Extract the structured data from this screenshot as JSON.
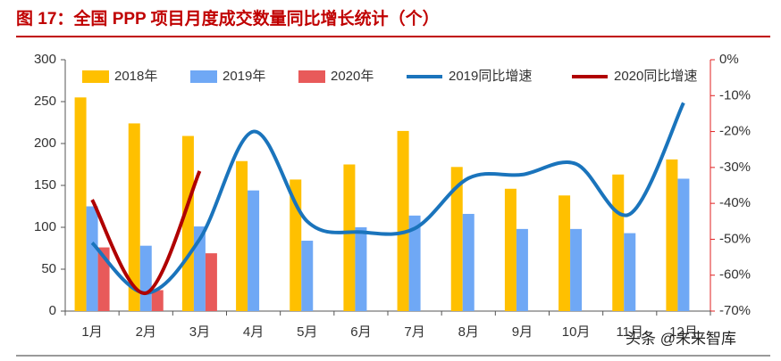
{
  "chart_data": {
    "type": "bar",
    "title": "图 17：全国 PPP 项目月度成交数量同比增长统计（个）",
    "categories": [
      "1月",
      "2月",
      "3月",
      "4月",
      "5月",
      "6月",
      "7月",
      "8月",
      "9月",
      "10月",
      "11月",
      "12月"
    ],
    "series": [
      {
        "name": "2018年",
        "type": "bar",
        "color": "#FFC000",
        "values": [
          255,
          224,
          209,
          179,
          157,
          175,
          215,
          172,
          146,
          138,
          163,
          181
        ]
      },
      {
        "name": "2019年",
        "type": "bar",
        "color": "#6FA8F5",
        "values": [
          125,
          78,
          101,
          144,
          84,
          100,
          114,
          116,
          98,
          98,
          93,
          158
        ]
      },
      {
        "name": "2020年",
        "type": "bar",
        "color": "#E85A5A",
        "values": [
          76,
          25,
          69,
          null,
          null,
          null,
          null,
          null,
          null,
          null,
          null,
          null
        ]
      },
      {
        "name": "2019同比增速",
        "type": "line",
        "axis": "y2",
        "color": "#1A74BC",
        "values": [
          -51,
          -65,
          -50,
          -20,
          -45,
          -48,
          -47,
          -33,
          -32,
          -29,
          -43,
          -12
        ]
      },
      {
        "name": "2020同比增速",
        "type": "line",
        "axis": "y2",
        "color": "#B00000",
        "values": [
          -39,
          -65,
          -31,
          null,
          null,
          null,
          null,
          null,
          null,
          null,
          null,
          null
        ]
      }
    ],
    "ylim": [
      0,
      300
    ],
    "yticks": [
      0,
      50,
      100,
      150,
      200,
      250,
      300
    ],
    "y2lim": [
      -70,
      0
    ],
    "y2ticks": [
      {
        "value": -70,
        "label": "-70%"
      },
      {
        "value": -60,
        "label": "-60%"
      },
      {
        "value": -50,
        "label": "-50%"
      },
      {
        "value": -40,
        "label": "-40%"
      },
      {
        "value": -30,
        "label": "-30%"
      },
      {
        "value": -20,
        "label": "-20%"
      },
      {
        "value": -10,
        "label": "-10%"
      },
      {
        "value": 0,
        "label": "0%"
      }
    ],
    "y2_axis_color": "#E02020",
    "watermark": "头条 @未来智库"
  }
}
